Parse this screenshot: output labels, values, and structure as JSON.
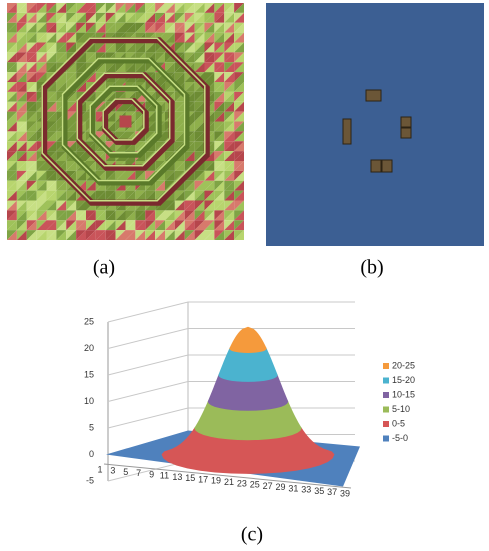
{
  "panels": {
    "a": {
      "label": "(a)"
    },
    "b": {
      "label": "(b)"
    },
    "c": {
      "label": "(c)"
    }
  },
  "chart_data": {
    "type": "surface",
    "categories": [
      "1",
      "3",
      "5",
      "7",
      "9",
      "11",
      "13",
      "15",
      "17",
      "19",
      "21",
      "23",
      "25",
      "27",
      "29",
      "31",
      "33",
      "35",
      "37",
      "39"
    ],
    "ylim": [
      -5,
      25
    ],
    "yticks": [
      -5,
      0,
      5,
      10,
      15,
      20,
      25
    ],
    "peak": 24,
    "grid": true,
    "legend": "right",
    "series": [
      {
        "name": "20-25",
        "color": "#f59a3c"
      },
      {
        "name": "15-20",
        "color": "#4bb3cf"
      },
      {
        "name": "10-15",
        "color": "#8064a2"
      },
      {
        "name": "5-10",
        "color": "#9bbb59"
      },
      {
        "name": "0-5",
        "color": "#d65656"
      },
      {
        "name": "-5-0",
        "color": "#4f81bd"
      }
    ]
  }
}
